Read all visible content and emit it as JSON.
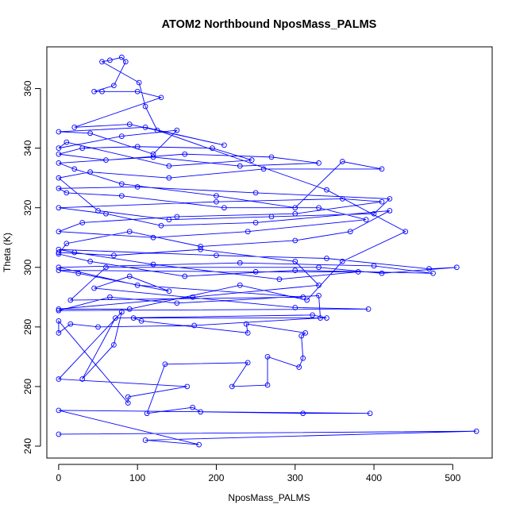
{
  "chart_data": {
    "type": "scatter",
    "title": "ATOM2 Northbound NposMass_PALMS",
    "xlabel": "NposMass_PALMS",
    "ylabel": "Theta (K)",
    "xlim": [
      -15,
      550
    ],
    "ylim": [
      236,
      374
    ],
    "x_ticks": [
      0,
      100,
      200,
      300,
      400,
      500
    ],
    "y_ticks": [
      240,
      260,
      280,
      300,
      320,
      340,
      360
    ],
    "connected": true,
    "color": "#0000ff",
    "series": [
      {
        "points": [
          [
            0,
            244
          ],
          [
            530,
            245
          ],
          [
            110,
            242
          ],
          [
            178,
            240.5
          ],
          [
            0,
            252
          ],
          [
            395,
            251
          ],
          [
            310,
            251
          ],
          [
            180,
            251.5
          ],
          [
            170,
            253
          ],
          [
            112,
            251
          ],
          [
            135,
            267.5
          ],
          [
            240,
            268
          ],
          [
            220,
            260
          ],
          [
            265,
            260.5
          ],
          [
            265,
            270
          ],
          [
            305,
            266.5
          ],
          [
            310,
            269.5
          ],
          [
            308,
            277
          ],
          [
            313,
            278
          ],
          [
            238,
            281
          ],
          [
            240,
            278
          ],
          [
            105,
            282
          ],
          [
            95,
            283
          ],
          [
            340,
            283
          ],
          [
            322,
            284
          ],
          [
            72,
            283
          ],
          [
            30,
            262.5
          ],
          [
            70,
            274
          ],
          [
            80,
            285
          ],
          [
            0,
            262.5
          ],
          [
            163,
            260
          ],
          [
            88,
            256.5
          ],
          [
            88,
            254.5
          ],
          [
            0,
            282
          ],
          [
            0,
            278
          ],
          [
            15,
            281
          ],
          [
            50,
            280
          ],
          [
            172,
            280.5
          ],
          [
            332,
            283
          ],
          [
            330,
            290.5
          ],
          [
            150,
            288
          ],
          [
            65,
            290
          ],
          [
            0,
            285.5
          ],
          [
            393,
            286
          ],
          [
            300,
            286.5
          ],
          [
            45,
            293
          ],
          [
            90,
            297
          ],
          [
            140,
            292
          ],
          [
            25,
            298
          ],
          [
            0,
            299
          ],
          [
            250,
            298.5
          ],
          [
            380,
            298.5
          ],
          [
            280,
            296
          ],
          [
            120,
            301
          ],
          [
            20,
            305
          ],
          [
            0,
            306
          ],
          [
            200,
            304
          ],
          [
            340,
            303
          ],
          [
            470,
            299.5
          ],
          [
            505,
            300
          ],
          [
            410,
            298
          ],
          [
            330,
            300
          ],
          [
            60,
            300
          ],
          [
            15,
            289
          ],
          [
            310,
            290
          ],
          [
            100,
            294
          ],
          [
            0,
            300
          ],
          [
            230,
            301.5
          ],
          [
            400,
            300.5
          ],
          [
            475,
            298
          ],
          [
            300,
            299
          ],
          [
            160,
            297
          ],
          [
            40,
            302
          ],
          [
            0,
            304.5
          ],
          [
            10,
            308
          ],
          [
            90,
            312
          ],
          [
            180,
            307
          ],
          [
            300,
            309
          ],
          [
            370,
            312
          ],
          [
            420,
            319
          ],
          [
            250,
            315
          ],
          [
            130,
            314
          ],
          [
            60,
            318
          ],
          [
            0,
            320
          ],
          [
            200,
            322
          ],
          [
            360,
            323
          ],
          [
            410,
            322
          ],
          [
            300,
            318
          ],
          [
            150,
            317
          ],
          [
            30,
            315
          ],
          [
            0,
            312
          ],
          [
            120,
            310
          ],
          [
            240,
            312
          ],
          [
            390,
            316
          ],
          [
            330,
            320
          ],
          [
            210,
            320
          ],
          [
            80,
            324
          ],
          [
            10,
            325
          ],
          [
            0,
            326.5
          ],
          [
            100,
            327
          ],
          [
            250,
            325
          ],
          [
            420,
            323
          ],
          [
            400,
            318
          ],
          [
            270,
            317
          ],
          [
            140,
            316
          ],
          [
            50,
            319
          ],
          [
            0,
            330
          ],
          [
            40,
            332
          ],
          [
            140,
            330
          ],
          [
            260,
            333
          ],
          [
            410,
            333
          ],
          [
            360,
            335.5
          ],
          [
            300,
            320
          ],
          [
            200,
            324
          ],
          [
            80,
            328
          ],
          [
            20,
            333
          ],
          [
            0,
            335
          ],
          [
            120,
            337
          ],
          [
            230,
            334
          ],
          [
            330,
            335
          ],
          [
            270,
            337
          ],
          [
            160,
            338
          ],
          [
            60,
            336
          ],
          [
            0,
            338
          ],
          [
            30,
            340
          ],
          [
            100,
            340.5
          ],
          [
            195,
            340
          ],
          [
            245,
            336
          ],
          [
            140,
            334
          ],
          [
            10,
            342
          ],
          [
            0,
            340
          ],
          [
            80,
            344
          ],
          [
            150,
            346
          ],
          [
            120,
            338
          ],
          [
            40,
            345
          ],
          [
            0,
            345.5
          ],
          [
            110,
            347
          ],
          [
            210,
            341
          ],
          [
            90,
            348
          ],
          [
            20,
            347
          ],
          [
            130,
            357
          ],
          [
            100,
            359
          ],
          [
            55,
            359
          ],
          [
            45,
            359
          ],
          [
            70,
            361
          ],
          [
            85,
            369
          ],
          [
            80,
            370.5
          ],
          [
            65,
            369.5
          ],
          [
            55,
            369
          ],
          [
            102,
            362
          ],
          [
            110,
            354
          ],
          [
            125,
            346
          ],
          [
            340,
            326
          ],
          [
            440,
            312
          ],
          [
            360,
            302
          ],
          [
            315,
            289
          ],
          [
            230,
            294
          ],
          [
            90,
            286
          ],
          [
            0,
            286
          ],
          [
            170,
            290
          ],
          [
            330,
            294
          ],
          [
            300,
            302
          ],
          [
            180,
            306
          ],
          [
            70,
            304
          ],
          [
            0,
            305
          ]
        ]
      }
    ]
  }
}
